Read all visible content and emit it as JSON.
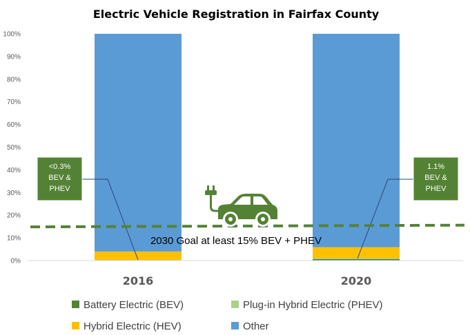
{
  "colors": {
    "bev": "#548235",
    "phev": "#a9d18e",
    "hev": "#ffc000",
    "other": "#5b9bd5",
    "goal": "#548235",
    "callout": "#548235"
  },
  "chart_data": {
    "type": "bar",
    "stacked": true,
    "title": "Electric Vehicle Registration in Fairfax County",
    "categories": [
      "2016",
      "2020"
    ],
    "ylim": [
      0,
      100
    ],
    "yticks": [
      "0%",
      "10%",
      "20%",
      "30%",
      "40%",
      "50%",
      "60%",
      "70%",
      "80%",
      "90%",
      "100%"
    ],
    "series": [
      {
        "name": "Battery Electric (BEV)",
        "color": "#548235",
        "values": [
          0.2,
          0.7
        ]
      },
      {
        "name": "Plug-in Hybrid Electric (PHEV)",
        "color": "#a9d18e",
        "values": [
          0.1,
          0.4
        ]
      },
      {
        "name": "Hybrid Electric (HEV)",
        "color": "#ffc000",
        "values": [
          3.7,
          4.8
        ]
      },
      {
        "name": "Other",
        "color": "#5b9bd5",
        "values": [
          96.0,
          94.1
        ]
      }
    ],
    "goal": {
      "value": 15,
      "label": "2030 Goal at least 15% BEV + PHEV"
    },
    "callouts": [
      {
        "category": "2016",
        "lines": [
          "<0.3%",
          "BEV &",
          "PHEV"
        ]
      },
      {
        "category": "2020",
        "lines": [
          "1.1%",
          "BEV &",
          "PHEV"
        ]
      }
    ],
    "legend_position": "bottom",
    "grid": false,
    "icon": "electric-car-icon"
  }
}
